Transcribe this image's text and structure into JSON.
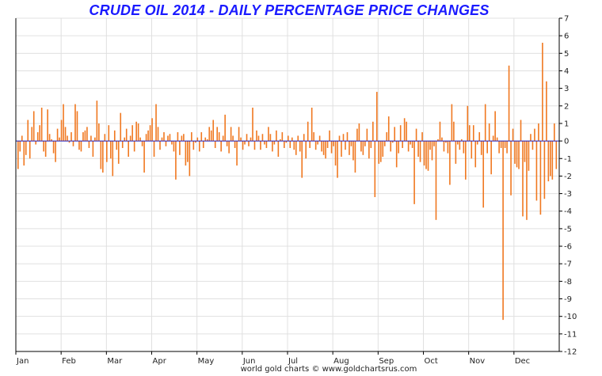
{
  "chart_data": {
    "type": "bar",
    "title": "CRUDE OIL 2014 - DAILY PERCENTAGE PRICE CHANGES",
    "xlabel": "",
    "ylabel": "",
    "ylim": [
      -12,
      7
    ],
    "yticks": [
      7,
      6,
      5,
      4,
      3,
      2,
      1,
      0,
      -1,
      -2,
      -3,
      -4,
      -5,
      -6,
      -7,
      -8,
      -9,
      -10,
      -11,
      -12
    ],
    "months": [
      "Jan",
      "Feb",
      "Mar",
      "Apr",
      "May",
      "Jun",
      "Jul",
      "Aug",
      "Sep",
      "Oct",
      "Nov",
      "Dec"
    ],
    "grid": true,
    "legend": "none",
    "colors": {
      "bars": "#f07820",
      "zero_line": "#2020c0",
      "grid": "#e0e0e0",
      "axis": "#000000"
    },
    "values": [
      -1.6,
      -0.6,
      0.3,
      -1.4,
      -0.8,
      1.2,
      -1.0,
      0.8,
      1.7,
      -0.2,
      0.5,
      0.9,
      1.9,
      -0.6,
      -0.9,
      1.8,
      0.4,
      0.1,
      -0.7,
      -1.2,
      0.7,
      0.2,
      1.2,
      2.1,
      0.8,
      0.3,
      -0.1,
      0.5,
      -0.3,
      2.1,
      1.7,
      -0.5,
      -0.6,
      0.5,
      0.6,
      0.8,
      -0.4,
      0.3,
      -0.9,
      0.2,
      2.3,
      1.0,
      -1.6,
      -1.8,
      0.4,
      -1.2,
      0.9,
      -1.0,
      -2.0,
      0.6,
      -0.5,
      -1.3,
      1.6,
      -0.4,
      0.2,
      0.7,
      -0.9,
      0.3,
      0.9,
      -0.6,
      1.1,
      1.0,
      0.2,
      -0.3,
      -1.8,
      0.4,
      0.6,
      0.9,
      1.3,
      -0.9,
      2.1,
      0.8,
      -0.5,
      0.2,
      0.5,
      -0.3,
      0.3,
      0.4,
      -0.2,
      -0.6,
      -2.2,
      0.5,
      -0.8,
      0.3,
      0.4,
      -1.4,
      -1.2,
      -2.0,
      0.5,
      -0.5,
      -0.1,
      0.2,
      -0.6,
      0.5,
      -0.4,
      0.2,
      0.1,
      0.8,
      0.6,
      1.2,
      -0.4,
      0.8,
      0.5,
      -0.6,
      0.3,
      1.5,
      -0.3,
      -0.7,
      0.8,
      0.3,
      -0.4,
      -1.4,
      0.8,
      0.2,
      -0.5,
      -0.2,
      0.4,
      -0.3,
      0.2,
      1.9,
      -0.5,
      0.6,
      0.3,
      -0.5,
      0.4,
      -0.2,
      -0.4,
      0.8,
      0.4,
      -0.6,
      -0.2,
      0.6,
      -0.9,
      0.1,
      0.5,
      -0.4,
      -0.1,
      0.3,
      -0.4,
      0.2,
      -0.5,
      -0.8,
      0.3,
      -0.6,
      -2.1,
      0.4,
      -1.0,
      1.1,
      -0.4,
      1.9,
      0.5,
      -0.5,
      -0.2,
      0.3,
      -0.6,
      -0.8,
      -1.0,
      -0.4,
      0.6,
      -0.7,
      -0.3,
      -1.4,
      -2.1,
      0.3,
      -0.9,
      0.4,
      -0.5,
      0.5,
      -0.8,
      -0.3,
      -1.1,
      -1.8,
      0.7,
      1.0,
      -0.6,
      -0.8,
      -0.3,
      0.7,
      -1.0,
      -0.4,
      1.1,
      -3.2,
      2.8,
      -1.3,
      -1.2,
      -0.9,
      -0.3,
      0.5,
      1.4,
      -0.6,
      -0.1,
      0.8,
      -1.5,
      -0.7,
      0.9,
      -0.4,
      1.3,
      1.1,
      -0.6,
      -0.2,
      -0.4,
      -3.6,
      0.7,
      -0.9,
      -1.2,
      0.5,
      -1.4,
      -1.6,
      -1.7,
      -0.5,
      -1.1,
      -0.3,
      -4.5,
      0.1,
      1.1,
      0.2,
      -0.6,
      -0.1,
      -0.7,
      -2.5,
      2.1,
      1.1,
      -1.3,
      -0.2,
      -0.5,
      0.1,
      -0.7,
      -2.2,
      2.0,
      0.9,
      -1.0,
      0.9,
      -1.5,
      -0.2,
      0.5,
      -0.8,
      -3.8,
      2.1,
      -0.7,
      1.0,
      -1.9,
      0.3,
      1.7,
      0.2,
      -0.7,
      -0.4,
      -10.2,
      -0.4,
      -0.7,
      4.3,
      -3.1,
      0.7,
      -1.3,
      -1.5,
      -1.6,
      1.2,
      -4.3,
      -1.2,
      -4.5,
      -1.7,
      0.4,
      -0.5,
      0.7,
      -3.4,
      1.0,
      -4.2,
      5.6,
      -3.3,
      3.4,
      -2.3,
      -2.0,
      -2.2,
      1.0,
      -1.6
    ]
  },
  "footer": "world gold charts © www.goldchartsrus.com"
}
